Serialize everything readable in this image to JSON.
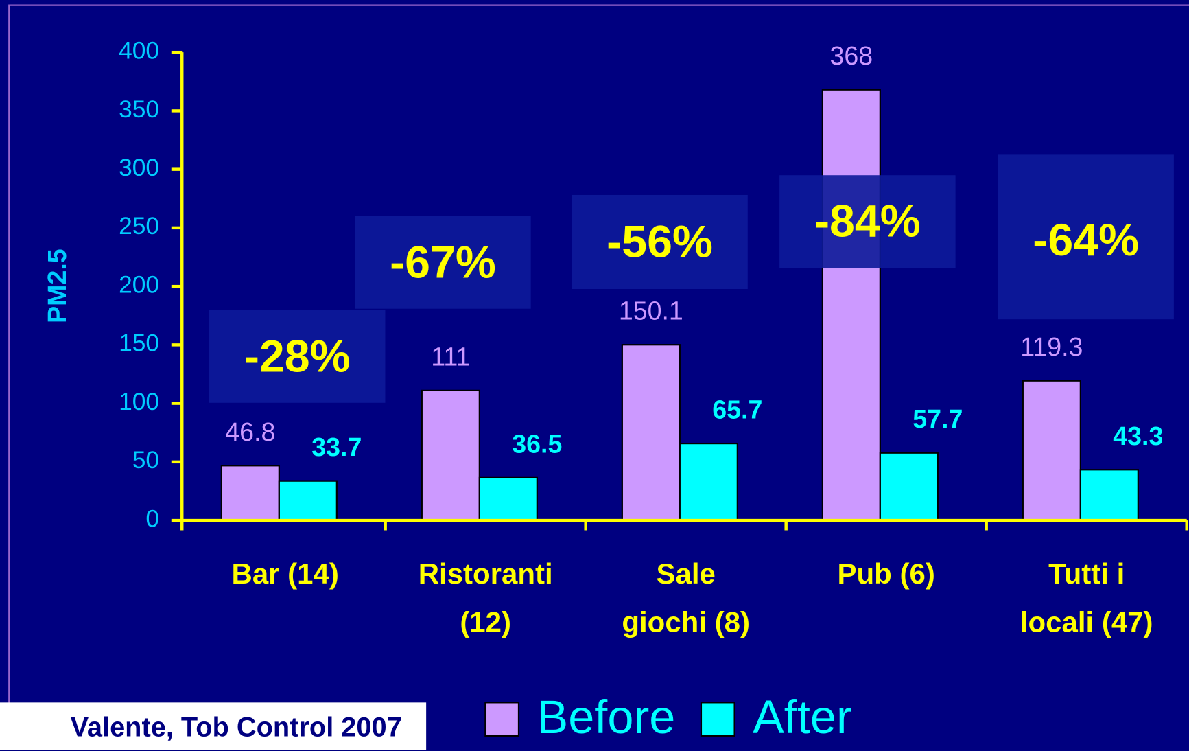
{
  "chart_data": {
    "type": "bar",
    "y_axis_label": "PM2.5",
    "categories": [
      [
        "Bar (14)"
      ],
      [
        "Ristoranti",
        "(12)"
      ],
      [
        "Sale",
        "giochi (8)"
      ],
      [
        "Pub (6)"
      ],
      [
        "Tutti i",
        "locali (47)"
      ]
    ],
    "series": [
      {
        "name": "Before",
        "color": "#cc99ff",
        "values": [
          46.8,
          111,
          150.1,
          368,
          119.3
        ]
      },
      {
        "name": "After",
        "color": "#00ffff",
        "values": [
          33.7,
          36.5,
          65.7,
          57.7,
          43.3
        ]
      }
    ],
    "annotations": [
      "-28%",
      "-67%",
      "-56%",
      "-84%",
      "-64%"
    ],
    "source": "Valente, Tob Control 2007",
    "ylim": [
      0,
      400
    ],
    "yticks": [
      0,
      50,
      100,
      150,
      200,
      250,
      300,
      350,
      400
    ],
    "legend": "bottom"
  }
}
